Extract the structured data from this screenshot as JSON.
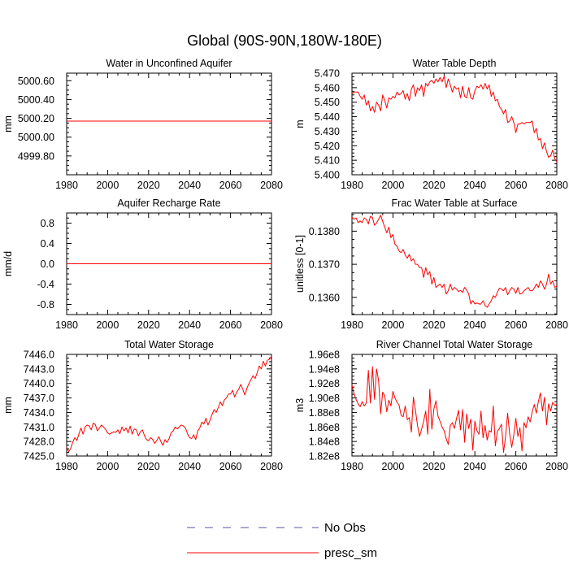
{
  "figure": {
    "title": "Global (90S-90N,180W-180E)",
    "series_color": "#ff0000"
  },
  "legend": {
    "entries": [
      {
        "label": "No Obs",
        "style": "dashed",
        "color": "#5555aa"
      },
      {
        "label": "presc_sm",
        "style": "solid",
        "color": "#ff0000"
      }
    ]
  },
  "chart_data": [
    {
      "type": "line",
      "title": "Water in Unconfined Aquifer",
      "xlabel": "",
      "ylabel": "mm",
      "xlim": [
        1980,
        2080
      ],
      "ylim": [
        4999.6,
        5000.68
      ],
      "xticks": [
        1980,
        2000,
        2020,
        2040,
        2060,
        2080
      ],
      "xtick_labels": [
        "1980",
        "2000",
        "2020",
        "2040",
        "2060",
        "2080"
      ],
      "yticks": [
        4999.8,
        5000.0,
        5000.2,
        5000.4,
        5000.6
      ],
      "ytick_labels": [
        "4999.80",
        "5000.00",
        "5000.20",
        "5000.40",
        "5000.60"
      ],
      "series": [
        {
          "name": "presc_sm",
          "x_start": 1980,
          "x_step": 1,
          "values": [
            5000.17,
            5000.17,
            5000.17,
            5000.17,
            5000.17,
            5000.17,
            5000.17,
            5000.17,
            5000.17,
            5000.17,
            5000.17,
            5000.17,
            5000.17,
            5000.17,
            5000.17,
            5000.17,
            5000.17,
            5000.17,
            5000.17,
            5000.17,
            5000.17,
            5000.17,
            5000.17,
            5000.17,
            5000.17,
            5000.17,
            5000.17,
            5000.17,
            5000.17,
            5000.17,
            5000.17,
            5000.17,
            5000.17,
            5000.17,
            5000.17,
            5000.17,
            5000.17,
            5000.17,
            5000.17,
            5000.17,
            5000.17,
            5000.17,
            5000.17,
            5000.17,
            5000.17,
            5000.17,
            5000.17,
            5000.17,
            5000.17,
            5000.17,
            5000.17,
            5000.17,
            5000.17,
            5000.17,
            5000.17,
            5000.17,
            5000.17,
            5000.17,
            5000.17,
            5000.17,
            5000.17,
            5000.17,
            5000.17,
            5000.17,
            5000.17,
            5000.17,
            5000.17,
            5000.17,
            5000.17,
            5000.17,
            5000.17,
            5000.17,
            5000.17,
            5000.17,
            5000.17,
            5000.17,
            5000.17,
            5000.17,
            5000.17,
            5000.17,
            5000.17,
            5000.17,
            5000.17,
            5000.17,
            5000.17,
            5000.17,
            5000.17,
            5000.17,
            5000.17,
            5000.17,
            5000.17,
            5000.17,
            5000.17,
            5000.17,
            5000.17,
            5000.17,
            5000.17,
            5000.17,
            5000.17,
            5000.17,
            5000.17
          ]
        }
      ]
    },
    {
      "type": "line",
      "title": "Water Table Depth",
      "xlabel": "",
      "ylabel": "m",
      "xlim": [
        1980,
        2080
      ],
      "ylim": [
        5.4,
        5.47
      ],
      "xticks": [
        1980,
        2000,
        2020,
        2040,
        2060,
        2080
      ],
      "xtick_labels": [
        "1980",
        "2000",
        "2020",
        "2040",
        "2060",
        "2080"
      ],
      "yticks": [
        5.4,
        5.41,
        5.42,
        5.43,
        5.44,
        5.45,
        5.46,
        5.47
      ],
      "ytick_labels": [
        "5.400",
        "5.410",
        "5.420",
        "5.430",
        "5.440",
        "5.450",
        "5.460",
        "5.470"
      ],
      "series": [
        {
          "name": "presc_sm",
          "x_start": 1980,
          "x_step": 1,
          "values": [
            5.456,
            5.457,
            5.457,
            5.457,
            5.454,
            5.452,
            5.455,
            5.448,
            5.451,
            5.444,
            5.447,
            5.443,
            5.45,
            5.448,
            5.444,
            5.455,
            5.451,
            5.446,
            5.453,
            5.452,
            5.454,
            5.453,
            5.457,
            5.455,
            5.456,
            5.458,
            5.452,
            5.456,
            5.451,
            5.459,
            5.462,
            5.454,
            5.46,
            5.458,
            5.462,
            5.454,
            5.463,
            5.461,
            5.464,
            5.465,
            5.463,
            5.466,
            5.464,
            5.467,
            5.464,
            5.468,
            5.46,
            5.466,
            5.462,
            5.457,
            5.461,
            5.459,
            5.46,
            5.453,
            5.461,
            5.454,
            5.453,
            5.46,
            5.453,
            5.452,
            5.458,
            5.461,
            5.46,
            5.462,
            5.459,
            5.463,
            5.459,
            5.462,
            5.454,
            5.457,
            5.451,
            5.452,
            5.447,
            5.445,
            5.442,
            5.445,
            5.436,
            5.437,
            5.44,
            5.436,
            5.429,
            5.435,
            5.435,
            5.436,
            5.435,
            5.436,
            5.436,
            5.436,
            5.437,
            5.429,
            5.432,
            5.424,
            5.425,
            5.418,
            5.422,
            5.416,
            5.412,
            5.413,
            5.417,
            5.411,
            5.409
          ]
        }
      ]
    },
    {
      "type": "line",
      "title": "Aquifer Recharge Rate",
      "xlabel": "",
      "ylabel": "mm/d",
      "xlim": [
        1980,
        2080
      ],
      "ylim": [
        -1.0,
        1.0
      ],
      "xticks": [
        1980,
        2000,
        2020,
        2040,
        2060,
        2080
      ],
      "xtick_labels": [
        "1980",
        "2000",
        "2020",
        "2040",
        "2060",
        "2080"
      ],
      "yticks": [
        -0.8,
        -0.4,
        0.0,
        0.4,
        0.8
      ],
      "ytick_labels": [
        "-0.8",
        "-0.4",
        "0.0",
        "0.4",
        "0.8"
      ],
      "series": [
        {
          "name": "presc_sm",
          "x_start": 1980,
          "x_step": 1,
          "values": [
            0,
            0,
            0,
            0,
            0,
            0,
            0,
            0,
            0,
            0,
            0,
            0,
            0,
            0,
            0,
            0,
            0,
            0,
            0,
            0,
            0,
            0,
            0,
            0,
            0,
            0,
            0,
            0,
            0,
            0,
            0,
            0,
            0,
            0,
            0,
            0,
            0,
            0,
            0,
            0,
            0,
            0,
            0,
            0,
            0,
            0,
            0,
            0,
            0,
            0,
            0,
            0,
            0,
            0,
            0,
            0,
            0,
            0,
            0,
            0,
            0,
            0,
            0,
            0,
            0,
            0,
            0,
            0,
            0,
            0,
            0,
            0,
            0,
            0,
            0,
            0,
            0,
            0,
            0,
            0,
            0,
            0,
            0,
            0,
            0,
            0,
            0,
            0,
            0,
            0,
            0,
            0,
            0,
            0,
            0,
            0,
            0,
            0,
            0,
            0,
            0
          ]
        }
      ]
    },
    {
      "type": "line",
      "title": "Frac Water Table at Surface",
      "xlabel": "",
      "ylabel": "unitless [0-1]",
      "xlim": [
        1980,
        2080
      ],
      "ylim": [
        0.13548,
        0.13855
      ],
      "xticks": [
        1980,
        2000,
        2020,
        2040,
        2060,
        2080
      ],
      "xtick_labels": [
        "1980",
        "2000",
        "2020",
        "2040",
        "2060",
        "2080"
      ],
      "yticks": [
        0.136,
        0.137,
        0.138
      ],
      "ytick_labels": [
        "0.1360",
        "0.1370",
        "0.1380"
      ],
      "series": [
        {
          "name": "presc_sm",
          "x_start": 1980,
          "x_step": 1,
          "values": [
            0.13842,
            0.13836,
            0.1384,
            0.13826,
            0.13831,
            0.13826,
            0.1384,
            0.13836,
            0.13822,
            0.13845,
            0.13841,
            0.13818,
            0.13825,
            0.13836,
            0.13848,
            0.1383,
            0.13812,
            0.13795,
            0.13812,
            0.1378,
            0.1379,
            0.1376,
            0.13755,
            0.1374,
            0.13735,
            0.13745,
            0.13728,
            0.13718,
            0.1373,
            0.1371,
            0.13717,
            0.137,
            0.137,
            0.1369,
            0.1369,
            0.1366,
            0.1369,
            0.13668,
            0.13678,
            0.1364,
            0.1366,
            0.1363,
            0.13636,
            0.1364,
            0.1363,
            0.1364,
            0.1361,
            0.1362,
            0.1364,
            0.13622,
            0.1363,
            0.13625,
            0.13618,
            0.13621,
            0.13615,
            0.1363,
            0.13622,
            0.1361,
            0.1358,
            0.1359,
            0.1358,
            0.13583,
            0.1358,
            0.1358,
            0.1359,
            0.13575,
            0.1357,
            0.1358,
            0.1359,
            0.13605,
            0.136,
            0.13615,
            0.13628,
            0.13625,
            0.1362,
            0.1363,
            0.13608,
            0.1362,
            0.1363,
            0.13625,
            0.13612,
            0.1363,
            0.1361,
            0.13612,
            0.1362,
            0.13625,
            0.1363,
            0.1362,
            0.1362,
            0.13628,
            0.1364,
            0.1363,
            0.1365,
            0.1364,
            0.13625,
            0.1364,
            0.1367,
            0.1364,
            0.1365,
            0.1363,
            0.13634
          ]
        }
      ]
    },
    {
      "type": "line",
      "title": "Total Water Storage",
      "xlabel": "",
      "ylabel": "mm",
      "xlim": [
        1980,
        2080
      ],
      "ylim": [
        7425.0,
        7446.0
      ],
      "xticks": [
        1980,
        2000,
        2020,
        2040,
        2060,
        2080
      ],
      "xtick_labels": [
        "1980",
        "2000",
        "2020",
        "2040",
        "2060",
        "2080"
      ],
      "yticks": [
        7425,
        7428,
        7431,
        7434,
        7437,
        7440,
        7443,
        7446
      ],
      "ytick_labels": [
        "7425.0",
        "7428.0",
        "7431.0",
        "7434.0",
        "7437.0",
        "7440.0",
        "7443.0",
        "7446.0"
      ],
      "series": [
        {
          "name": "presc_sm",
          "x_start": 1980,
          "x_step": 1,
          "values": [
            7426.8,
            7425.9,
            7426.6,
            7427.9,
            7428.8,
            7428.2,
            7429.6,
            7430.8,
            7429.5,
            7431.0,
            7431.4,
            7431.2,
            7430.4,
            7431.8,
            7431.5,
            7430.2,
            7430.8,
            7431.4,
            7431.0,
            7430.5,
            7429.8,
            7429.5,
            7429.8,
            7430.0,
            7429.9,
            7430.4,
            7429.6,
            7431.0,
            7430.2,
            7430.8,
            7429.8,
            7431.2,
            7429.5,
            7430.6,
            7430.4,
            7429.2,
            7430.0,
            7430.4,
            7429.2,
            7428.4,
            7428.2,
            7428.8,
            7428.4,
            7427.6,
            7428.2,
            7429.0,
            7428.0,
            7427.2,
            7428.4,
            7427.8,
            7428.6,
            7429.8,
            7430.2,
            7431.0,
            7430.6,
            7431.0,
            7431.4,
            7431.2,
            7430.8,
            7429.6,
            7428.8,
            7428.6,
            7429.4,
            7428.4,
            7430.2,
            7430.8,
            7432.0,
            7431.6,
            7432.8,
            7431.4,
            7432.4,
            7433.6,
            7434.6,
            7434.0,
            7435.0,
            7436.2,
            7435.4,
            7436.6,
            7437.0,
            7437.8,
            7437.8,
            7438.6,
            7437.2,
            7438.2,
            7438.8,
            7439.8,
            7438.8,
            7437.6,
            7439.0,
            7440.0,
            7440.8,
            7441.6,
            7441.0,
            7442.2,
            7443.6,
            7443.0,
            7444.6,
            7443.6,
            7444.8,
            7445.0,
            7445.6
          ]
        }
      ]
    },
    {
      "type": "line",
      "title": "River Channel Total Water Storage",
      "xlabel": "",
      "ylabel": "m3",
      "xlim": [
        1980,
        2080
      ],
      "ylim": [
        182000000,
        196000000
      ],
      "xticks": [
        1980,
        2000,
        2020,
        2040,
        2060,
        2080
      ],
      "xtick_labels": [
        "1980",
        "2000",
        "2020",
        "2040",
        "2060",
        "2080"
      ],
      "yticks": [
        182000000,
        184000000,
        186000000,
        188000000,
        190000000,
        192000000,
        194000000,
        196000000
      ],
      "ytick_labels": [
        "1.82e8",
        "1.84e8",
        "1.86e8",
        "1.88e8",
        "1.90e8",
        "1.92e8",
        "1.94e8",
        "1.96e8"
      ],
      "series": [
        {
          "name": "presc_sm",
          "x_start": 1980,
          "x_step": 1,
          "values": [
            191800000,
            190600000,
            189800000,
            189200000,
            188800000,
            189500000,
            188900000,
            189300000,
            193800000,
            189300000,
            194300000,
            189800000,
            194000000,
            192400000,
            187800000,
            190800000,
            190300000,
            188100000,
            189700000,
            188900000,
            190900000,
            190000000,
            189400000,
            189000000,
            187600000,
            187400000,
            188900000,
            187000000,
            187300000,
            185300000,
            190100000,
            188300000,
            186200000,
            184700000,
            185700000,
            186800000,
            188200000,
            185000000,
            191200000,
            185700000,
            188500000,
            189600000,
            187500000,
            186800000,
            186000000,
            185500000,
            184400000,
            183600000,
            186200000,
            186600000,
            185800000,
            187100000,
            188300000,
            185600000,
            188400000,
            183900000,
            187800000,
            185800000,
            187100000,
            182800000,
            186800000,
            185500000,
            185000000,
            188200000,
            184500000,
            186200000,
            184200000,
            185500000,
            185300000,
            188900000,
            183400000,
            185400000,
            185800000,
            186400000,
            182500000,
            184700000,
            187900000,
            185000000,
            183200000,
            184900000,
            187200000,
            184700000,
            185900000,
            182700000,
            186600000,
            185900000,
            187400000,
            186700000,
            188100000,
            189100000,
            187900000,
            189500000,
            190700000,
            188200000,
            190100000,
            186300000,
            189200000,
            188200000,
            189400000,
            189000000,
            189100000
          ]
        }
      ]
    }
  ]
}
